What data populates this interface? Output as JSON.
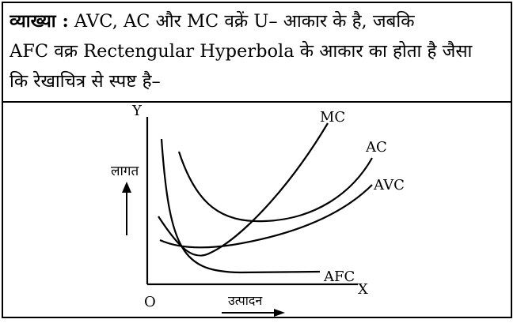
{
  "explanation": {
    "lead": "व्याख्या :",
    "line1_rest": "AVC, AC और MC वक्रें U– आकार के है, जबकि",
    "line2": "AFC वक्र Rectengular Hyperbola के आकार का होता है जैसा",
    "line3": "कि रेखाचित्र से स्पष्ट है–"
  },
  "diagram": {
    "y_axis_label": "Y",
    "x_axis_label": "X",
    "origin_label": "O",
    "y_quantity_label": "लागत",
    "x_quantity_label": "उत्पादन",
    "curves": {
      "mc": "MC",
      "ac": "AC",
      "avc": "AVC",
      "afc": "AFC"
    }
  }
}
